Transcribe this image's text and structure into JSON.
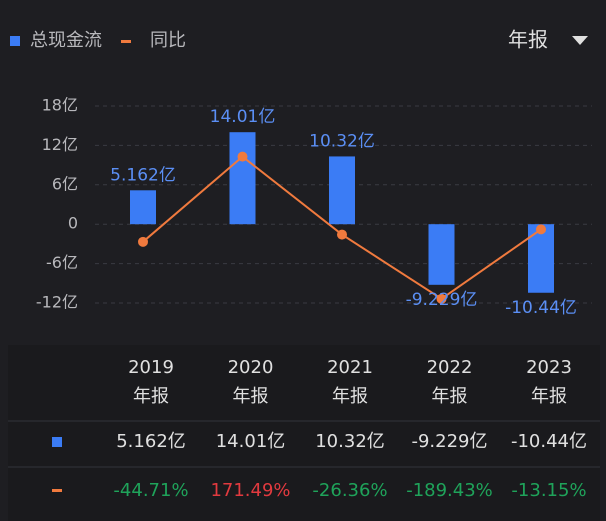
{
  "chart_data": {
    "type": "bar",
    "period_selector": "年报",
    "categories": [
      "2019",
      "2020",
      "2021",
      "2022",
      "2023"
    ],
    "category_sublabels": [
      "年报",
      "年报",
      "年报",
      "年报",
      "年报"
    ],
    "series": [
      {
        "name": "总现金流",
        "color": "#3b7cf5",
        "values": [
          5.162,
          14.01,
          10.32,
          -9.229,
          -10.44
        ],
        "value_labels": [
          "5.162亿",
          "14.01亿",
          "10.32亿",
          "-9.229亿",
          "-10.44亿"
        ]
      },
      {
        "name": "同比",
        "type": "line",
        "axis": "y2",
        "color": "#f07a3e",
        "values": [
          -44.71,
          171.49,
          -26.36,
          -189.43,
          -13.15
        ],
        "value_labels": [
          "-44.71%",
          "171.49%",
          "-26.36%",
          "-189.43%",
          "-13.15%"
        ]
      }
    ],
    "ylim": [
      -12,
      18
    ],
    "yticks": [
      {
        "value": 18,
        "label": "18亿"
      },
      {
        "value": 12,
        "label": "12亿"
      },
      {
        "value": 6,
        "label": "6亿"
      },
      0,
      {
        "value": -6,
        "label": "-6亿"
      },
      {
        "value": -12,
        "label": "-12亿"
      }
    ],
    "y2lim": [
      -200,
      300
    ],
    "grid": true,
    "positive_color": "#e23a3f",
    "negative_color": "#1fa35a"
  }
}
